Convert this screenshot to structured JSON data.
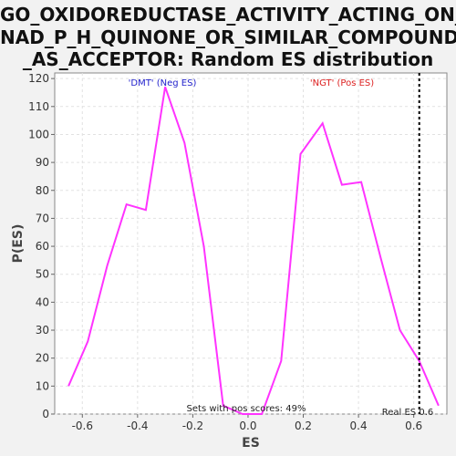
{
  "title_lines": [
    "GO_OXIDOREDUCTASE_ACTIVITY_ACTING_ON_",
    "NAD_P_H_QUINONE_OR_SIMILAR_COMPOUND",
    "_AS_ACCEPTOR: Random ES distribution"
  ],
  "chart_data": {
    "type": "line",
    "xlabel": "ES",
    "ylabel": "P(ES)",
    "xlim": [
      -0.7,
      0.72
    ],
    "ylim": [
      0,
      122
    ],
    "xticks": [
      -0.6,
      -0.4,
      -0.2,
      0.0,
      0.2,
      0.4,
      0.6
    ],
    "xtick_labels": [
      "-0.6",
      "-0.4",
      "-0.2",
      "0.0",
      "0.2",
      "0.4",
      "0.6"
    ],
    "yticks": [
      0,
      10,
      20,
      30,
      40,
      50,
      60,
      70,
      80,
      90,
      100,
      110,
      120
    ],
    "grid": true,
    "line_color": "#ff33ff",
    "series": [
      {
        "x": [
          -0.65,
          -0.58,
          -0.51,
          -0.44,
          -0.37,
          -0.3,
          -0.23,
          -0.16,
          -0.09,
          -0.02,
          0.05,
          0.12,
          0.19,
          0.27,
          0.34,
          0.41,
          0.48,
          0.55,
          0.62,
          0.69
        ],
        "values": [
          10,
          26,
          53,
          75,
          73,
          117,
          97,
          60,
          3,
          0,
          0,
          19,
          93,
          104,
          82,
          83,
          56,
          30,
          19,
          3
        ]
      }
    ],
    "legend_neg": {
      "text": "'DMT' (Neg ES)",
      "color": "#2222cc"
    },
    "legend_pos": {
      "text": "'NGT' (Pos ES)",
      "color": "#dd2222"
    },
    "pos_scores_note": "Sets with pos scores: 49%",
    "real_es": {
      "x": 0.62,
      "label": "Real ES 0.6"
    }
  }
}
